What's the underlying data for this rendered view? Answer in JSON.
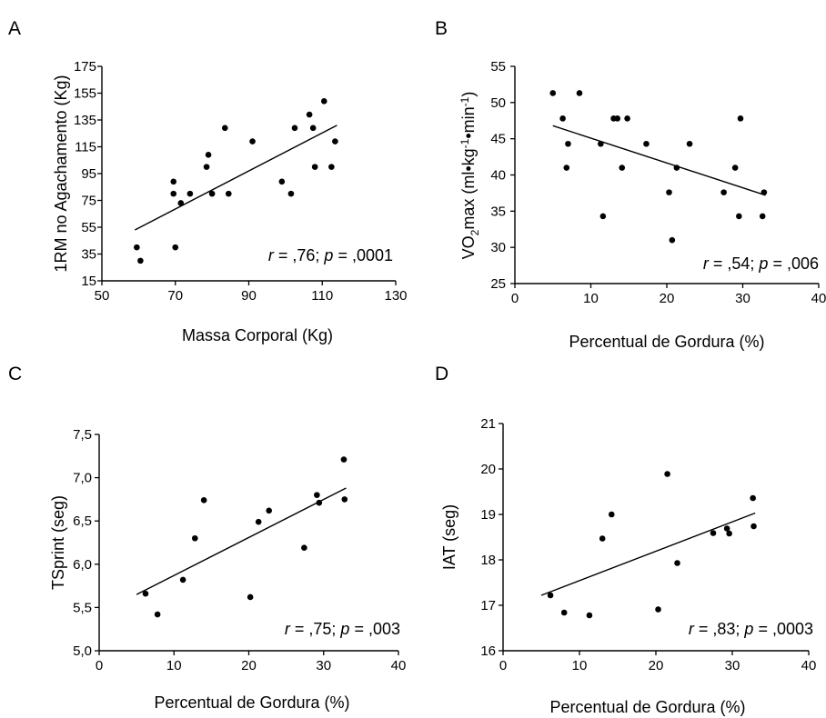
{
  "figure": {
    "panels": [
      {
        "letter": "A",
        "xlabel": "Massa Corporal (Kg)",
        "ylabel": "1RM no Agachamento (Kg)",
        "r": ",76",
        "p": ",0001"
      },
      {
        "letter": "B",
        "xlabel": "Percentual de Gordura (%)",
        "ylabel": "VO2max (ml•kg-1•min-1)",
        "r": ",54",
        "p": ",006"
      },
      {
        "letter": "C",
        "xlabel": "Percentual de Gordura (%)",
        "ylabel": "TSprint (seg)",
        "r": ",75",
        "p": ",003"
      },
      {
        "letter": "D",
        "xlabel": "Percentual de Gordura (%)",
        "ylabel": "IAT (seg)",
        "r": ",83",
        "p": ",0003"
      }
    ]
  },
  "chart_data": [
    {
      "type": "scatter",
      "panel": "A",
      "title": "",
      "xlabel": "Massa Corporal (Kg)",
      "ylabel": "1RM no Agachamento (Kg)",
      "xlim": [
        50,
        130
      ],
      "ylim": [
        15,
        175
      ],
      "xticks": [
        "50",
        "70",
        "90",
        "110",
        "130"
      ],
      "yticks": [
        "15",
        "35",
        "55",
        "75",
        "95",
        "115",
        "135",
        "155",
        "175"
      ],
      "annotation": {
        "r": ",76",
        "p": ",0001"
      },
      "grid": false,
      "points": [
        [
          59.5,
          40
        ],
        [
          60.5,
          30
        ],
        [
          69.5,
          89
        ],
        [
          69.5,
          80
        ],
        [
          70,
          40
        ],
        [
          71.5,
          73
        ],
        [
          74,
          80
        ],
        [
          78.5,
          100
        ],
        [
          79,
          109
        ],
        [
          80,
          80
        ],
        [
          83.5,
          129
        ],
        [
          84.5,
          80
        ],
        [
          91,
          119
        ],
        [
          99,
          89
        ],
        [
          101.5,
          80
        ],
        [
          102.5,
          129
        ],
        [
          106.5,
          139
        ],
        [
          107.5,
          129
        ],
        [
          108,
          100
        ],
        [
          110.5,
          149
        ],
        [
          112.5,
          100
        ],
        [
          113.5,
          119
        ]
      ],
      "fit": [
        [
          59,
          53
        ],
        [
          114,
          131
        ]
      ]
    },
    {
      "type": "scatter",
      "panel": "B",
      "title": "",
      "xlabel": "Percentual de Gordura (%)",
      "ylabel": "VO2max (ml•kg-1•min-1)",
      "xlim": [
        0,
        40
      ],
      "ylim": [
        25,
        55
      ],
      "xticks": [
        "0",
        "10",
        "20",
        "30",
        "40"
      ],
      "yticks": [
        "25",
        "30",
        "35",
        "40",
        "45",
        "50",
        "55"
      ],
      "annotation": {
        "r": ",54",
        "p": ",006"
      },
      "grid": false,
      "points": [
        [
          5,
          51.3
        ],
        [
          6.3,
          47.8
        ],
        [
          6.8,
          41
        ],
        [
          7,
          44.3
        ],
        [
          8.5,
          51.3
        ],
        [
          11.3,
          44.3
        ],
        [
          11.6,
          34.3
        ],
        [
          13,
          47.8
        ],
        [
          13.5,
          47.8
        ],
        [
          14.1,
          41
        ],
        [
          14.8,
          47.8
        ],
        [
          17.3,
          44.3
        ],
        [
          20.3,
          37.6
        ],
        [
          20.7,
          31
        ],
        [
          21.3,
          41
        ],
        [
          23,
          44.3
        ],
        [
          27.5,
          37.6
        ],
        [
          29,
          41
        ],
        [
          29.5,
          34.3
        ],
        [
          29.7,
          47.8
        ],
        [
          32.6,
          34.3
        ],
        [
          32.8,
          37.6
        ]
      ],
      "fit": [
        [
          5,
          46.8
        ],
        [
          33,
          37.2
        ]
      ]
    },
    {
      "type": "scatter",
      "panel": "C",
      "title": "",
      "xlabel": "Percentual de Gordura (%)",
      "ylabel": "TSprint (seg)",
      "xlim": [
        0,
        40
      ],
      "ylim": [
        5.0,
        7.5
      ],
      "xticks": [
        "0",
        "10",
        "20",
        "30",
        "40"
      ],
      "yticks": [
        "5,0",
        "5,5",
        "6,0",
        "6,5",
        "7,0",
        "7,5"
      ],
      "annotation": {
        "r": ",75",
        "p": ",003"
      },
      "grid": false,
      "points": [
        [
          6.2,
          5.66
        ],
        [
          7.8,
          5.42
        ],
        [
          11.2,
          5.82
        ],
        [
          12.8,
          6.3
        ],
        [
          14,
          6.74
        ],
        [
          20.2,
          5.62
        ],
        [
          21.3,
          6.49
        ],
        [
          22.7,
          6.62
        ],
        [
          27.4,
          6.19
        ],
        [
          29.1,
          6.8
        ],
        [
          29.4,
          6.71
        ],
        [
          32.7,
          7.21
        ],
        [
          32.8,
          6.75
        ]
      ],
      "fit": [
        [
          5,
          5.65
        ],
        [
          33,
          6.88
        ]
      ]
    },
    {
      "type": "scatter",
      "panel": "D",
      "title": "",
      "xlabel": "Percentual de Gordura (%)",
      "ylabel": "IAT (seg)",
      "xlim": [
        0,
        40
      ],
      "ylim": [
        16,
        21
      ],
      "xticks": [
        "0",
        "10",
        "20",
        "30",
        "40"
      ],
      "yticks": [
        "16",
        "17",
        "18",
        "19",
        "20",
        "21"
      ],
      "annotation": {
        "r": ",83",
        "p": ",0003"
      },
      "grid": false,
      "points": [
        [
          6.2,
          17.22
        ],
        [
          8,
          16.84
        ],
        [
          11.3,
          16.78
        ],
        [
          13,
          18.47
        ],
        [
          14.2,
          19
        ],
        [
          20.3,
          16.91
        ],
        [
          21.5,
          19.89
        ],
        [
          22.8,
          17.93
        ],
        [
          27.5,
          18.59
        ],
        [
          29.3,
          18.69
        ],
        [
          29.6,
          18.58
        ],
        [
          32.7,
          19.36
        ],
        [
          32.8,
          18.74
        ]
      ],
      "fit": [
        [
          5,
          17.22
        ],
        [
          33,
          19.03
        ]
      ]
    }
  ]
}
